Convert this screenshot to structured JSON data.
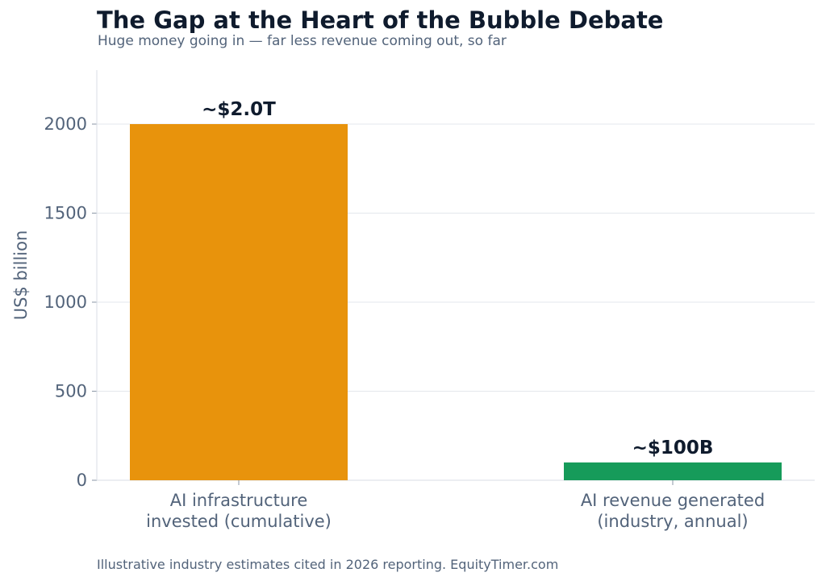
{
  "chart_data": {
    "type": "bar",
    "title": "The Gap at the Heart of the Bubble Debate",
    "subtitle": "Huge money going in — far less revenue coming out, so far",
    "ylabel": "US$ billion",
    "xlabel": "",
    "ylim": [
      0,
      2300
    ],
    "yticks": [
      0,
      500,
      1000,
      1500,
      2000
    ],
    "grid": true,
    "categories": [
      [
        "AI infrastructure",
        "invested (cumulative)"
      ],
      [
        "AI revenue generated",
        "(industry, annual)"
      ]
    ],
    "values": [
      2000,
      100
    ],
    "data_labels": [
      "~$2.0T",
      "~$100B"
    ],
    "colors": [
      "#E8930C",
      "#169B5A"
    ],
    "footer": "Illustrative industry estimates cited in 2026 reporting. EquityTimer.com"
  }
}
